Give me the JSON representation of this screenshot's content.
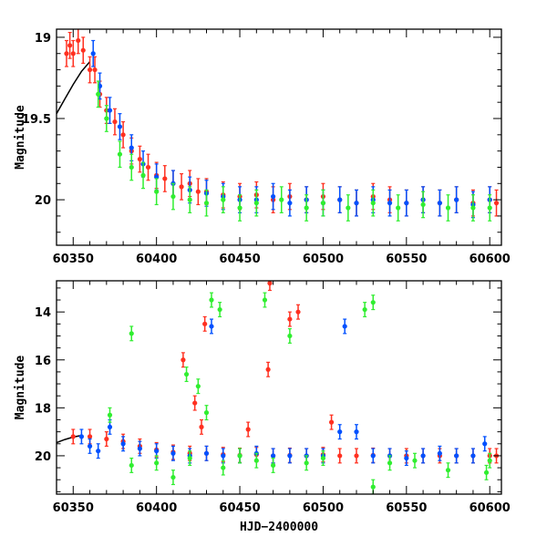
{
  "chart_data": [
    {
      "type": "scatter",
      "panel": "top",
      "title": "",
      "xlabel": "",
      "ylabel": "Magnitude",
      "xlim": [
        60340,
        60607
      ],
      "ylim": [
        20.28,
        18.95
      ],
      "y_inverted": true,
      "x_ticks": [
        60350,
        60400,
        60450,
        60500,
        60550,
        60600
      ],
      "y_ticks": [
        19,
        19.5,
        20
      ],
      "y_tick_labels": [
        "19",
        "19.5",
        "20"
      ],
      "grid": false,
      "legend": "none",
      "series": [
        {
          "color": "#ff3020",
          "marker": "circle-with-errorbars",
          "points": [
            [
              60346,
              19.1
            ],
            [
              60348,
              19.05
            ],
            [
              60350,
              19.1
            ],
            [
              60353,
              19.02
            ],
            [
              60356,
              19.08
            ],
            [
              60360,
              19.2
            ],
            [
              60363,
              19.2
            ],
            [
              60366,
              19.35
            ],
            [
              60370,
              19.45
            ],
            [
              60375,
              19.52
            ],
            [
              60380,
              19.6
            ],
            [
              60385,
              19.7
            ],
            [
              60390,
              19.75
            ],
            [
              60395,
              19.8
            ],
            [
              60400,
              19.85
            ],
            [
              60405,
              19.87
            ],
            [
              60410,
              19.9
            ],
            [
              60415,
              19.92
            ],
            [
              60420,
              19.9
            ],
            [
              60425,
              19.95
            ],
            [
              60430,
              19.95
            ],
            [
              60440,
              19.97
            ],
            [
              60450,
              19.98
            ],
            [
              60460,
              19.97
            ],
            [
              60470,
              20.0
            ],
            [
              60480,
              19.98
            ],
            [
              60490,
              20.0
            ],
            [
              60500,
              19.98
            ],
            [
              60510,
              20.0
            ],
            [
              60520,
              20.02
            ],
            [
              60530,
              19.98
            ],
            [
              60540,
              20.0
            ],
            [
              60550,
              20.02
            ],
            [
              60560,
              20.0
            ],
            [
              60570,
              20.02
            ],
            [
              60580,
              20.0
            ],
            [
              60590,
              20.02
            ],
            [
              60600,
              20.0
            ],
            [
              60604,
              20.02
            ]
          ]
        },
        {
          "color": "#0050ff",
          "marker": "circle-with-errorbars",
          "points": [
            [
              60362,
              19.1
            ],
            [
              60366,
              19.3
            ],
            [
              60372,
              19.45
            ],
            [
              60378,
              19.55
            ],
            [
              60385,
              19.68
            ],
            [
              60392,
              19.78
            ],
            [
              60400,
              19.86
            ],
            [
              60410,
              19.9
            ],
            [
              60420,
              19.94
            ],
            [
              60430,
              19.96
            ],
            [
              60440,
              19.98
            ],
            [
              60450,
              20.0
            ],
            [
              60460,
              20.0
            ],
            [
              60470,
              19.98
            ],
            [
              60480,
              20.02
            ],
            [
              60490,
              20.0
            ],
            [
              60500,
              20.02
            ],
            [
              60510,
              20.0
            ],
            [
              60520,
              20.02
            ],
            [
              60530,
              20.0
            ],
            [
              60540,
              20.02
            ],
            [
              60550,
              20.02
            ],
            [
              60560,
              20.0
            ],
            [
              60570,
              20.02
            ],
            [
              60580,
              20.0
            ],
            [
              60590,
              20.03
            ],
            [
              60600,
              20.0
            ]
          ]
        },
        {
          "color": "#30ee30",
          "marker": "circle-with-errorbars",
          "points": [
            [
              60365,
              19.35
            ],
            [
              60370,
              19.5
            ],
            [
              60378,
              19.72
            ],
            [
              60385,
              19.8
            ],
            [
              60392,
              19.85
            ],
            [
              60400,
              19.95
            ],
            [
              60410,
              19.98
            ],
            [
              60420,
              20.0
            ],
            [
              60430,
              20.02
            ],
            [
              60440,
              20.0
            ],
            [
              60450,
              20.05
            ],
            [
              60460,
              20.02
            ],
            [
              60475,
              20.0
            ],
            [
              60490,
              20.05
            ],
            [
              60500,
              20.02
            ],
            [
              60515,
              20.05
            ],
            [
              60530,
              20.02
            ],
            [
              60545,
              20.05
            ],
            [
              60560,
              20.03
            ],
            [
              60575,
              20.05
            ],
            [
              60590,
              20.05
            ],
            [
              60600,
              20.05
            ]
          ]
        }
      ],
      "model_curve": [
        [
          60340,
          19.47
        ],
        [
          60345,
          19.38
        ],
        [
          60350,
          19.29
        ],
        [
          60355,
          19.21
        ],
        [
          60360,
          19.15
        ]
      ]
    },
    {
      "type": "scatter",
      "panel": "bottom",
      "title": "",
      "xlabel": "HJD−2400000",
      "ylabel": "Magnitude",
      "xlim": [
        60340,
        60607
      ],
      "ylim": [
        21.6,
        12.7
      ],
      "y_inverted": true,
      "x_ticks": [
        60350,
        60400,
        60450,
        60500,
        60550,
        60600
      ],
      "y_ticks": [
        14,
        16,
        18,
        20
      ],
      "y_tick_labels": [
        "14",
        "16",
        "18",
        "20"
      ],
      "grid": false,
      "legend": "none",
      "series": [
        {
          "color": "#ff3020",
          "marker": "circle-with-errorbars",
          "points": [
            [
              60350,
              19.2
            ],
            [
              60360,
              19.2
            ],
            [
              60370,
              19.3
            ],
            [
              60380,
              19.4
            ],
            [
              60390,
              19.6
            ],
            [
              60400,
              19.75
            ],
            [
              60410,
              19.85
            ],
            [
              60420,
              19.9
            ],
            [
              60430,
              19.9
            ],
            [
              60440,
              19.95
            ],
            [
              60450,
              19.98
            ],
            [
              60460,
              19.95
            ],
            [
              60470,
              20.0
            ],
            [
              60480,
              19.98
            ],
            [
              60490,
              20.0
            ],
            [
              60500,
              19.95
            ],
            [
              60510,
              20.0
            ],
            [
              60520,
              20.0
            ],
            [
              60530,
              19.98
            ],
            [
              60540,
              20.0
            ],
            [
              60550,
              20.0
            ],
            [
              60560,
              20.0
            ],
            [
              60570,
              20.0
            ],
            [
              60580,
              20.0
            ],
            [
              60590,
              20.0
            ],
            [
              60600,
              20.0
            ],
            [
              60604,
              20.0
            ],
            [
              60416,
              16.0
            ],
            [
              60423,
              17.8
            ],
            [
              60427,
              18.8
            ],
            [
              60429,
              14.5
            ],
            [
              60468,
              12.8
            ],
            [
              60467,
              16.4
            ],
            [
              60480,
              14.3
            ],
            [
              60485,
              14.0
            ],
            [
              60455,
              18.9
            ],
            [
              60505,
              18.6
            ]
          ]
        },
        {
          "color": "#0050ff",
          "marker": "circle-with-errorbars",
          "points": [
            [
              60355,
              19.2
            ],
            [
              60360,
              19.6
            ],
            [
              60365,
              19.8
            ],
            [
              60372,
              18.8
            ],
            [
              60380,
              19.5
            ],
            [
              60390,
              19.7
            ],
            [
              60400,
              19.8
            ],
            [
              60410,
              19.9
            ],
            [
              60420,
              20.0
            ],
            [
              60430,
              19.9
            ],
            [
              60440,
              20.0
            ],
            [
              60450,
              20.0
            ],
            [
              60460,
              19.9
            ],
            [
              60470,
              20.0
            ],
            [
              60480,
              20.0
            ],
            [
              60490,
              20.0
            ],
            [
              60500,
              20.0
            ],
            [
              60510,
              19.0
            ],
            [
              60513,
              14.6
            ],
            [
              60520,
              19.0
            ],
            [
              60530,
              20.0
            ],
            [
              60540,
              20.0
            ],
            [
              60550,
              20.1
            ],
            [
              60560,
              20.0
            ],
            [
              60570,
              19.9
            ],
            [
              60580,
              20.0
            ],
            [
              60590,
              20.0
            ],
            [
              60597,
              19.5
            ],
            [
              60433,
              14.6
            ]
          ]
        },
        {
          "color": "#30ee30",
          "marker": "circle-with-errorbars",
          "points": [
            [
              60372,
              18.3
            ],
            [
              60385,
              14.9
            ],
            [
              60418,
              16.6
            ],
            [
              60425,
              17.1
            ],
            [
              60430,
              18.2
            ],
            [
              60433,
              13.5
            ],
            [
              60438,
              13.9
            ],
            [
              60385,
              20.4
            ],
            [
              60400,
              20.3
            ],
            [
              60410,
              20.9
            ],
            [
              60420,
              20.1
            ],
            [
              60440,
              20.5
            ],
            [
              60450,
              20.0
            ],
            [
              60460,
              20.2
            ],
            [
              60465,
              13.5
            ],
            [
              60470,
              20.4
            ],
            [
              60480,
              15.0
            ],
            [
              60490,
              20.3
            ],
            [
              60500,
              20.1
            ],
            [
              60525,
              13.9
            ],
            [
              60530,
              13.6
            ],
            [
              60530,
              21.3
            ],
            [
              60540,
              20.3
            ],
            [
              60555,
              20.2
            ],
            [
              60575,
              20.6
            ],
            [
              60598,
              20.7
            ],
            [
              60600,
              20.2
            ]
          ]
        }
      ],
      "model_curve": [
        [
          60340,
          19.45
        ],
        [
          60345,
          19.32
        ],
        [
          60350,
          19.22
        ],
        [
          60355,
          19.15
        ]
      ]
    }
  ]
}
